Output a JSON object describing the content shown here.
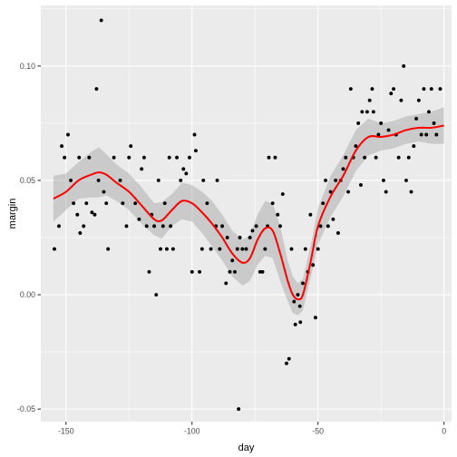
{
  "chart_data": {
    "type": "scatter",
    "title": "",
    "xlabel": "day",
    "ylabel": "margin",
    "xlim": [
      -160,
      3
    ],
    "ylim": [
      -0.0555,
      0.1265
    ],
    "x_ticks": [
      -150,
      -100,
      -50,
      0
    ],
    "x_tick_labels": [
      "-150",
      "-100",
      "-50",
      "0"
    ],
    "y_ticks": [
      -0.05,
      0.0,
      0.05,
      0.1
    ],
    "y_tick_labels": [
      "-0.05",
      "0.00",
      "0.05",
      "0.10"
    ],
    "grid": true,
    "legend": "none",
    "colors": {
      "panel": "#ebebeb",
      "grid": "#ffffff",
      "points": "#000000",
      "smooth_line": "#ff0000",
      "ribbon": "#999999"
    },
    "points": [
      {
        "x": -154.6,
        "y": 0.02
      },
      {
        "x": -152.8,
        "y": 0.03
      },
      {
        "x": -151.7,
        "y": 0.065
      },
      {
        "x": -150.6,
        "y": 0.06
      },
      {
        "x": -149.2,
        "y": 0.07
      },
      {
        "x": -148.1,
        "y": 0.05
      },
      {
        "x": -147.0,
        "y": 0.04
      },
      {
        "x": -145.5,
        "y": 0.035
      },
      {
        "x": -144.8,
        "y": 0.06
      },
      {
        "x": -144.4,
        "y": 0.027
      },
      {
        "x": -143.0,
        "y": 0.03
      },
      {
        "x": -141.9,
        "y": 0.04
      },
      {
        "x": -140.8,
        "y": 0.06
      },
      {
        "x": -139.7,
        "y": 0.036
      },
      {
        "x": -138.6,
        "y": 0.035
      },
      {
        "x": -137.9,
        "y": 0.09
      },
      {
        "x": -137.1,
        "y": 0.05
      },
      {
        "x": -136.0,
        "y": 0.12
      },
      {
        "x": -135.0,
        "y": 0.045
      },
      {
        "x": -134.0,
        "y": 0.04
      },
      {
        "x": -133.3,
        "y": 0.02
      },
      {
        "x": -131.0,
        "y": 0.06
      },
      {
        "x": -128.5,
        "y": 0.05
      },
      {
        "x": -127.5,
        "y": 0.04
      },
      {
        "x": -126.0,
        "y": 0.03
      },
      {
        "x": -125.0,
        "y": 0.06
      },
      {
        "x": -124.3,
        "y": 0.065
      },
      {
        "x": -122.5,
        "y": 0.04
      },
      {
        "x": -121.0,
        "y": 0.033
      },
      {
        "x": -120.0,
        "y": 0.055
      },
      {
        "x": -119.0,
        "y": 0.06
      },
      {
        "x": -118.0,
        "y": 0.03
      },
      {
        "x": -117.0,
        "y": 0.01
      },
      {
        "x": -116.0,
        "y": 0.035
      },
      {
        "x": -115.0,
        "y": 0.03
      },
      {
        "x": -114.2,
        "y": 0.0
      },
      {
        "x": -113.3,
        "y": 0.05
      },
      {
        "x": -112.5,
        "y": 0.02
      },
      {
        "x": -111.5,
        "y": 0.03
      },
      {
        "x": -110.8,
        "y": 0.04
      },
      {
        "x": -110.0,
        "y": 0.02
      },
      {
        "x": -109.0,
        "y": 0.06
      },
      {
        "x": -108.5,
        "y": 0.03
      },
      {
        "x": -107.5,
        "y": 0.02
      },
      {
        "x": -106.0,
        "y": 0.06
      },
      {
        "x": -104.5,
        "y": 0.05
      },
      {
        "x": -103.4,
        "y": 0.055
      },
      {
        "x": -102.3,
        "y": 0.053
      },
      {
        "x": -101.0,
        "y": 0.06
      },
      {
        "x": -100.0,
        "y": 0.01
      },
      {
        "x": -99.0,
        "y": 0.07
      },
      {
        "x": -98.5,
        "y": 0.063
      },
      {
        "x": -97.0,
        "y": 0.01
      },
      {
        "x": -96.0,
        "y": 0.02
      },
      {
        "x": -95.5,
        "y": 0.05
      },
      {
        "x": -94.0,
        "y": 0.04
      },
      {
        "x": -92.5,
        "y": 0.02
      },
      {
        "x": -90.5,
        "y": 0.03
      },
      {
        "x": -90.0,
        "y": 0.05
      },
      {
        "x": -89.0,
        "y": 0.02
      },
      {
        "x": -88.0,
        "y": 0.03
      },
      {
        "x": -86.5,
        "y": 0.005
      },
      {
        "x": -86.0,
        "y": 0.025
      },
      {
        "x": -85.0,
        "y": 0.01
      },
      {
        "x": -84.0,
        "y": 0.015
      },
      {
        "x": -83.0,
        "y": 0.01
      },
      {
        "x": -82.0,
        "y": 0.02
      },
      {
        "x": -81.5,
        "y": -0.05
      },
      {
        "x": -81.0,
        "y": 0.025
      },
      {
        "x": -80.0,
        "y": 0.02
      },
      {
        "x": -78.5,
        "y": 0.02
      },
      {
        "x": -77.0,
        "y": 0.025
      },
      {
        "x": -76.0,
        "y": 0.028
      },
      {
        "x": -74.5,
        "y": 0.03
      },
      {
        "x": -73.0,
        "y": 0.01
      },
      {
        "x": -72.0,
        "y": 0.01
      },
      {
        "x": -71.0,
        "y": 0.02
      },
      {
        "x": -70.0,
        "y": 0.03
      },
      {
        "x": -69.5,
        "y": 0.06
      },
      {
        "x": -68.0,
        "y": 0.04
      },
      {
        "x": -67.0,
        "y": 0.06
      },
      {
        "x": -66.0,
        "y": 0.035
      },
      {
        "x": -65.0,
        "y": 0.03
      },
      {
        "x": -64.0,
        "y": 0.044
      },
      {
        "x": -62.5,
        "y": -0.03
      },
      {
        "x": -61.5,
        "y": -0.028
      },
      {
        "x": -60.5,
        "y": 0.02
      },
      {
        "x": -59.5,
        "y": -0.003
      },
      {
        "x": -59.0,
        "y": -0.013
      },
      {
        "x": -58.0,
        "y": 0.0
      },
      {
        "x": -57.2,
        "y": -0.005
      },
      {
        "x": -57.0,
        "y": -0.012
      },
      {
        "x": -56.0,
        "y": 0.005
      },
      {
        "x": -55.0,
        "y": 0.02
      },
      {
        "x": -54.0,
        "y": 0.01
      },
      {
        "x": -53.0,
        "y": 0.035
      },
      {
        "x": -52.0,
        "y": 0.013
      },
      {
        "x": -51.0,
        "y": -0.01
      },
      {
        "x": -50.0,
        "y": 0.02
      },
      {
        "x": -49.0,
        "y": 0.03
      },
      {
        "x": -48.0,
        "y": 0.04
      },
      {
        "x": -47.0,
        "y": 0.05
      },
      {
        "x": -46.0,
        "y": 0.03
      },
      {
        "x": -45.0,
        "y": 0.045
      },
      {
        "x": -44.0,
        "y": 0.033
      },
      {
        "x": -43.0,
        "y": 0.05
      },
      {
        "x": -42.0,
        "y": 0.027
      },
      {
        "x": -41.0,
        "y": 0.05
      },
      {
        "x": -40.0,
        "y": 0.055
      },
      {
        "x": -39.0,
        "y": 0.06
      },
      {
        "x": -38.0,
        "y": 0.045
      },
      {
        "x": -37.0,
        "y": 0.09
      },
      {
        "x": -36.0,
        "y": 0.06
      },
      {
        "x": -35.0,
        "y": 0.065
      },
      {
        "x": -34.0,
        "y": 0.075
      },
      {
        "x": -33.0,
        "y": 0.048
      },
      {
        "x": -32.5,
        "y": 0.08
      },
      {
        "x": -31.5,
        "y": 0.06
      },
      {
        "x": -30.5,
        "y": 0.08
      },
      {
        "x": -29.5,
        "y": 0.085
      },
      {
        "x": -28.5,
        "y": 0.09
      },
      {
        "x": -28.0,
        "y": 0.08
      },
      {
        "x": -27.0,
        "y": 0.06
      },
      {
        "x": -26.0,
        "y": 0.07
      },
      {
        "x": -25.0,
        "y": 0.075
      },
      {
        "x": -24.0,
        "y": 0.05
      },
      {
        "x": -23.0,
        "y": 0.045
      },
      {
        "x": -22.0,
        "y": 0.072
      },
      {
        "x": -21.0,
        "y": 0.088
      },
      {
        "x": -20.0,
        "y": 0.09
      },
      {
        "x": -19.0,
        "y": 0.07
      },
      {
        "x": -18.0,
        "y": 0.06
      },
      {
        "x": -17.0,
        "y": 0.085
      },
      {
        "x": -16.0,
        "y": 0.1
      },
      {
        "x": -15.0,
        "y": 0.05
      },
      {
        "x": -14.0,
        "y": 0.06
      },
      {
        "x": -13.0,
        "y": 0.045
      },
      {
        "x": -12.0,
        "y": 0.065
      },
      {
        "x": -11.0,
        "y": 0.077
      },
      {
        "x": -10.0,
        "y": 0.085
      },
      {
        "x": -9.0,
        "y": 0.07
      },
      {
        "x": -8.0,
        "y": 0.09
      },
      {
        "x": -7.0,
        "y": 0.07
      },
      {
        "x": -6.0,
        "y": 0.08
      },
      {
        "x": -5.0,
        "y": 0.09
      },
      {
        "x": -4.0,
        "y": 0.075
      },
      {
        "x": -3.0,
        "y": 0.07
      },
      {
        "x": -1.5,
        "y": 0.09
      }
    ],
    "smooth": {
      "x": [
        -155,
        -150,
        -145,
        -140,
        -137,
        -134,
        -130,
        -125,
        -120,
        -115,
        -112,
        -108,
        -104,
        -100,
        -96,
        -92,
        -88,
        -84,
        -80,
        -77,
        -74,
        -71,
        -68,
        -65,
        -62,
        -60,
        -58,
        -56,
        -53,
        -50,
        -45,
        -40,
        -35,
        -30,
        -25,
        -20,
        -15,
        -10,
        -5,
        0
      ],
      "y": [
        0.042,
        0.045,
        0.05,
        0.0525,
        0.0535,
        0.0525,
        0.049,
        0.045,
        0.039,
        0.033,
        0.0325,
        0.037,
        0.041,
        0.04,
        0.036,
        0.031,
        0.025,
        0.018,
        0.014,
        0.016,
        0.024,
        0.029,
        0.028,
        0.018,
        0.006,
        0.0,
        -0.002,
        0.0,
        0.014,
        0.03,
        0.043,
        0.052,
        0.063,
        0.069,
        0.069,
        0.07,
        0.072,
        0.073,
        0.073,
        0.074
      ],
      "se": [
        0.01,
        0.008,
        0.008,
        0.01,
        0.011,
        0.009,
        0.008,
        0.008,
        0.008,
        0.007,
        0.008,
        0.007,
        0.008,
        0.008,
        0.009,
        0.01,
        0.01,
        0.01,
        0.01,
        0.01,
        0.011,
        0.012,
        0.012,
        0.012,
        0.009,
        0.008,
        0.007,
        0.007,
        0.007,
        0.008,
        0.009,
        0.009,
        0.009,
        0.008,
        0.006,
        0.006,
        0.006,
        0.006,
        0.007,
        0.008
      ]
    }
  }
}
